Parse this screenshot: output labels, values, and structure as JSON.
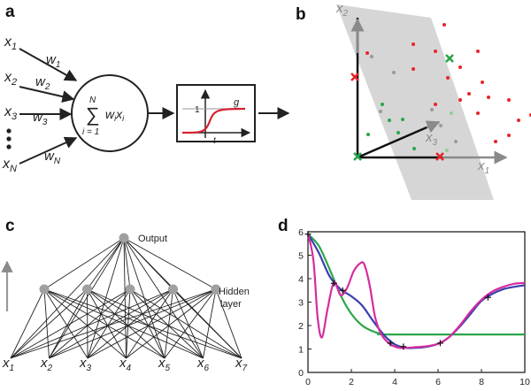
{
  "panels": {
    "a": {
      "label": "a",
      "inputs": [
        {
          "base": "x",
          "sub": "1"
        },
        {
          "base": "x",
          "sub": "2"
        },
        {
          "base": "x",
          "sub": "3"
        },
        {
          "base": "x",
          "sub": "N"
        }
      ],
      "weights": [
        {
          "base": "w",
          "sub": "1"
        },
        {
          "base": "w",
          "sub": "2"
        },
        {
          "base": "w",
          "sub": "3"
        },
        {
          "base": "w",
          "sub": "N"
        }
      ],
      "sum": {
        "sigma": "∑",
        "upper": "N",
        "lower": "i = 1",
        "w": "w",
        "wi": "i",
        "x": "x",
        "xi": "i"
      },
      "activation": {
        "func_label": "g",
        "tick_label": "1",
        "axis_label": "t"
      },
      "ellipsis": "•\n•\n•"
    },
    "b": {
      "label": "b",
      "axes": [
        {
          "base": "x",
          "sub": "1"
        },
        {
          "base": "x",
          "sub": "2"
        },
        {
          "base": "x",
          "sub": "3"
        }
      ]
    },
    "c": {
      "label": "c",
      "output_label": "Output",
      "hidden_label_line1": "Hidden",
      "hidden_label_line2": "layer",
      "inputs": [
        {
          "base": "x",
          "sub": "1"
        },
        {
          "base": "x",
          "sub": "2"
        },
        {
          "base": "x",
          "sub": "3"
        },
        {
          "base": "x",
          "sub": "4"
        },
        {
          "base": "x",
          "sub": "5"
        },
        {
          "base": "x",
          "sub": "6"
        },
        {
          "base": "x",
          "sub": "7"
        }
      ]
    },
    "d": {
      "label": "d"
    }
  },
  "colors": {
    "red": "#e8242a",
    "green": "#2aa64a",
    "light_green": "#8fd08f",
    "blue": "#3b3fae",
    "magenta": "#d62ca0",
    "grey_plane": "#d6d6d6",
    "grey_node": "#a0a0a0"
  },
  "chart_data": {
    "type": "line",
    "title": "",
    "xlabel": "",
    "ylabel": "",
    "xlim": [
      0,
      10
    ],
    "ylim": [
      0,
      6
    ],
    "xticks": [
      0,
      2,
      4,
      6,
      8,
      10
    ],
    "yticks": [
      0,
      1,
      2,
      3,
      4,
      5,
      6
    ],
    "points": {
      "x": [
        0,
        1.2,
        1.6,
        3.8,
        4.4,
        6.1,
        8.3
      ],
      "y": [
        5.9,
        3.8,
        3.5,
        1.25,
        1.1,
        1.25,
        3.2
      ]
    },
    "series": [
      {
        "color": "green",
        "x": [
          0,
          0.5,
          1,
          1.5,
          2,
          2.5,
          3,
          3.4,
          3.8,
          10
        ],
        "y": [
          5.9,
          5.4,
          4.4,
          3.3,
          2.5,
          2.0,
          1.75,
          1.65,
          1.62,
          1.62
        ]
      },
      {
        "color": "blue",
        "x": [
          0,
          0.5,
          1,
          1.5,
          2,
          2.5,
          3,
          3.5,
          4,
          4.5,
          5,
          5.5,
          6,
          6.5,
          7,
          7.5,
          8,
          8.5,
          9,
          9.5,
          10
        ],
        "y": [
          5.9,
          5.1,
          4.1,
          3.55,
          3.25,
          2.85,
          2.2,
          1.6,
          1.2,
          1.05,
          1.05,
          1.1,
          1.22,
          1.5,
          1.95,
          2.5,
          3.05,
          3.35,
          3.55,
          3.65,
          3.72
        ]
      },
      {
        "color": "magenta",
        "x": [
          0,
          0.25,
          0.45,
          0.65,
          0.9,
          1.2,
          1.5,
          1.8,
          2.1,
          2.4,
          2.6,
          2.85,
          3.1,
          3.4,
          3.8,
          4.2,
          4.6,
          5,
          5.5,
          6,
          6.5,
          7,
          7.5,
          8,
          8.5,
          9,
          9.5,
          10
        ],
        "y": [
          5.9,
          4.8,
          2.3,
          1.5,
          2.7,
          3.85,
          3.3,
          3.6,
          4.3,
          4.65,
          4.6,
          3.7,
          2.35,
          1.6,
          1.2,
          1.05,
          1.05,
          1.08,
          1.12,
          1.22,
          1.5,
          2.0,
          2.6,
          3.1,
          3.45,
          3.65,
          3.78,
          3.82
        ]
      }
    ]
  },
  "scatter_b": {
    "red_dots": [
      [
        502,
        28
      ],
      [
        467,
        50
      ],
      [
        492,
        58
      ],
      [
        540,
        58
      ],
      [
        415,
        60
      ],
      [
        520,
        76
      ],
      [
        467,
        78
      ],
      [
        506,
        88
      ],
      [
        545,
        93
      ],
      [
        530,
        106
      ],
      [
        552,
        110
      ],
      [
        520,
        113
      ],
      [
        575,
        113
      ],
      [
        492,
        118
      ],
      [
        540,
        128
      ],
      [
        600,
        130
      ],
      [
        575,
        153
      ],
      [
        586,
        136
      ],
      [
        560,
        160
      ]
    ],
    "grey_dots": [
      [
        420,
        64
      ],
      [
        445,
        82
      ],
      [
        430,
        126
      ],
      [
        488,
        124
      ],
      [
        498,
        142
      ],
      [
        515,
        160
      ]
    ],
    "green_dots": [
      [
        432,
        118
      ],
      [
        440,
        136
      ],
      [
        455,
        135
      ],
      [
        450,
        150
      ],
      [
        468,
        168
      ],
      [
        416,
        152
      ]
    ],
    "light_green_dots": [
      [
        510,
        128
      ],
      [
        505,
        170
      ]
    ],
    "crosses": [
      {
        "x": 401,
        "y": 87,
        "color": "red"
      },
      {
        "x": 508,
        "y": 66,
        "color": "green"
      },
      {
        "x": 497,
        "y": 177,
        "color": "red"
      },
      {
        "x": 404,
        "y": 177,
        "color": "green"
      }
    ]
  }
}
